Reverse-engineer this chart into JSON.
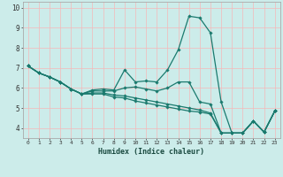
{
  "xlabel": "Humidex (Indice chaleur)",
  "bg_color": "#ccecea",
  "line_color": "#1a7a6e",
  "grid_color_h": "#f5b8b8",
  "grid_color_v": "#f5b8b8",
  "x_ticks": [
    0,
    1,
    2,
    3,
    4,
    5,
    6,
    7,
    8,
    9,
    10,
    11,
    12,
    13,
    14,
    15,
    16,
    17,
    18,
    19,
    20,
    21,
    22,
    23
  ],
  "y_ticks": [
    4,
    5,
    6,
    7,
    8,
    9,
    10
  ],
  "ylim": [
    3.5,
    10.3
  ],
  "xlim": [
    -0.5,
    23.5
  ],
  "series": [
    [
      7.1,
      6.75,
      6.55,
      6.3,
      5.95,
      5.7,
      5.9,
      5.95,
      5.9,
      6.9,
      6.3,
      6.35,
      6.3,
      6.9,
      7.9,
      9.58,
      9.5,
      8.75,
      5.3,
      3.75,
      3.75,
      4.35,
      3.8,
      4.85
    ],
    [
      7.1,
      6.75,
      6.55,
      6.3,
      5.95,
      5.7,
      5.85,
      5.85,
      5.85,
      6.0,
      6.05,
      5.95,
      5.85,
      6.0,
      6.3,
      6.3,
      5.3,
      5.2,
      3.75,
      3.75,
      3.75,
      4.35,
      3.8,
      4.85
    ],
    [
      7.1,
      6.75,
      6.55,
      6.3,
      5.95,
      5.7,
      5.75,
      5.75,
      5.65,
      5.6,
      5.5,
      5.4,
      5.3,
      5.2,
      5.1,
      5.0,
      4.9,
      4.75,
      3.75,
      3.75,
      3.75,
      4.35,
      3.8,
      4.85
    ],
    [
      7.1,
      6.75,
      6.55,
      6.3,
      5.95,
      5.7,
      5.7,
      5.7,
      5.55,
      5.5,
      5.35,
      5.25,
      5.15,
      5.05,
      4.95,
      4.85,
      4.8,
      4.7,
      3.75,
      3.75,
      3.75,
      4.35,
      3.8,
      4.85
    ]
  ]
}
